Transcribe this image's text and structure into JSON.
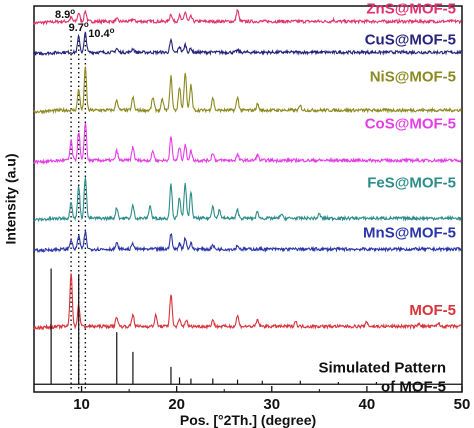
{
  "chart_data": {
    "type": "line",
    "title": "",
    "xlabel": "Pos. [°2Th.] (degree)",
    "ylabel": "Intensity (a.u)",
    "xlim": [
      5,
      50
    ],
    "xticks": [
      10,
      20,
      30,
      40,
      50
    ],
    "y_ticks_shown": false,
    "grid": false,
    "legend": "labels placed above each pattern on the right",
    "reference_lines": [
      {
        "x": 8.9,
        "label": "8.9",
        "unit": "o"
      },
      {
        "x": 9.7,
        "label": "9.7",
        "unit": "o"
      },
      {
        "x": 10.4,
        "label": "10.4",
        "unit": "o"
      }
    ],
    "series": [
      {
        "name": "ZnS@MOF-5",
        "color": "#e0316e",
        "offset": 0.96,
        "scale": 0.05,
        "peaks": [
          [
            8.9,
            0.2
          ],
          [
            9.7,
            0.45
          ],
          [
            10.4,
            0.55
          ],
          [
            13.7,
            0.12
          ],
          [
            15.4,
            0.12
          ],
          [
            19.4,
            0.4
          ],
          [
            20.3,
            0.3
          ],
          [
            20.9,
            0.5
          ],
          [
            21.5,
            0.25
          ],
          [
            26.4,
            0.6
          ],
          [
            36.5,
            0.08
          ]
        ]
      },
      {
        "name": "CuS@MOF-5",
        "color": "#25237a",
        "offset": 0.88,
        "scale": 0.05,
        "peaks": [
          [
            9.7,
            0.8
          ],
          [
            10.4,
            1.0
          ],
          [
            13.7,
            0.2
          ],
          [
            15.4,
            0.2
          ],
          [
            19.4,
            0.6
          ],
          [
            20.3,
            0.3
          ],
          [
            20.9,
            0.4
          ],
          [
            21.5,
            0.2
          ],
          [
            26.4,
            0.1
          ]
        ]
      },
      {
        "name": "NiS@MOF-5",
        "color": "#8c8a1f",
        "offset": 0.73,
        "scale": 0.11,
        "peaks": [
          [
            9.7,
            0.5
          ],
          [
            10.4,
            1.0
          ],
          [
            13.7,
            0.25
          ],
          [
            15.4,
            0.3
          ],
          [
            17.5,
            0.3
          ],
          [
            18.5,
            0.25
          ],
          [
            19.4,
            0.8
          ],
          [
            20.3,
            0.55
          ],
          [
            20.9,
            0.9
          ],
          [
            21.5,
            0.6
          ],
          [
            23.8,
            0.3
          ],
          [
            26.4,
            0.3
          ],
          [
            28.5,
            0.15
          ],
          [
            33.0,
            0.1
          ]
        ]
      },
      {
        "name": "CoS@MOF-5",
        "color": "#e53ee6",
        "offset": 0.6,
        "scale": 0.1,
        "peaks": [
          [
            8.9,
            0.5
          ],
          [
            9.7,
            0.75
          ],
          [
            10.4,
            1.0
          ],
          [
            13.7,
            0.25
          ],
          [
            15.4,
            0.35
          ],
          [
            17.5,
            0.25
          ],
          [
            19.4,
            0.6
          ],
          [
            20.3,
            0.35
          ],
          [
            20.9,
            0.4
          ],
          [
            21.5,
            0.25
          ],
          [
            23.8,
            0.2
          ],
          [
            26.4,
            0.15
          ],
          [
            28.5,
            0.15
          ]
        ]
      },
      {
        "name": "FeS@MOF-5",
        "color": "#2c8d8a",
        "offset": 0.45,
        "scale": 0.11,
        "peaks": [
          [
            8.9,
            0.4
          ],
          [
            9.7,
            0.75
          ],
          [
            10.4,
            1.0
          ],
          [
            13.7,
            0.25
          ],
          [
            15.4,
            0.3
          ],
          [
            17.2,
            0.3
          ],
          [
            19.4,
            0.8
          ],
          [
            20.3,
            0.5
          ],
          [
            20.9,
            0.8
          ],
          [
            21.5,
            0.6
          ],
          [
            23.8,
            0.3
          ],
          [
            24.5,
            0.2
          ],
          [
            26.4,
            0.2
          ],
          [
            28.5,
            0.15
          ],
          [
            31.0,
            0.1
          ],
          [
            35.0,
            0.1
          ]
        ]
      },
      {
        "name": "MnS@MOF-5",
        "color": "#2a35a8",
        "offset": 0.37,
        "scale": 0.05,
        "peaks": [
          [
            8.9,
            0.5
          ],
          [
            9.7,
            0.7
          ],
          [
            10.4,
            0.9
          ],
          [
            13.7,
            0.3
          ],
          [
            15.4,
            0.3
          ],
          [
            19.4,
            0.8
          ],
          [
            20.3,
            0.3
          ],
          [
            20.9,
            0.6
          ],
          [
            21.5,
            0.3
          ],
          [
            23.8,
            0.2
          ],
          [
            26.4,
            0.2
          ]
        ]
      },
      {
        "name": "MOF-5",
        "color": "#d7333a",
        "offset": 0.17,
        "scale": 0.14,
        "peaks": [
          [
            8.9,
            1.0
          ],
          [
            9.7,
            0.4
          ],
          [
            13.7,
            0.18
          ],
          [
            15.4,
            0.22
          ],
          [
            17.8,
            0.2
          ],
          [
            19.4,
            0.6
          ],
          [
            20.3,
            0.12
          ],
          [
            21.0,
            0.12
          ],
          [
            23.8,
            0.12
          ],
          [
            26.4,
            0.2
          ],
          [
            28.5,
            0.12
          ],
          [
            32.5,
            0.1
          ],
          [
            40.0,
            0.08
          ],
          [
            45.5,
            0.06
          ],
          [
            47.5,
            0.06
          ]
        ]
      },
      {
        "name": "Simulated Pattern\nof MOF-5",
        "label_lines": [
          "Simulated Pattern",
          "of MOF-5"
        ],
        "color": "#111111",
        "offset": 0.02,
        "scale": 0.12,
        "peaks": [
          [
            6.8,
            1.0
          ],
          [
            9.7,
            0.95
          ],
          [
            13.7,
            0.45
          ],
          [
            15.4,
            0.28
          ],
          [
            19.4,
            0.15
          ],
          [
            20.3,
            0.06
          ],
          [
            21.5,
            0.05
          ],
          [
            23.8,
            0.05
          ],
          [
            26.4,
            0.04
          ],
          [
            29.0,
            0.03
          ],
          [
            33.0,
            0.03
          ],
          [
            37.0,
            0.02
          ],
          [
            41.0,
            0.02
          ]
        ]
      }
    ]
  }
}
